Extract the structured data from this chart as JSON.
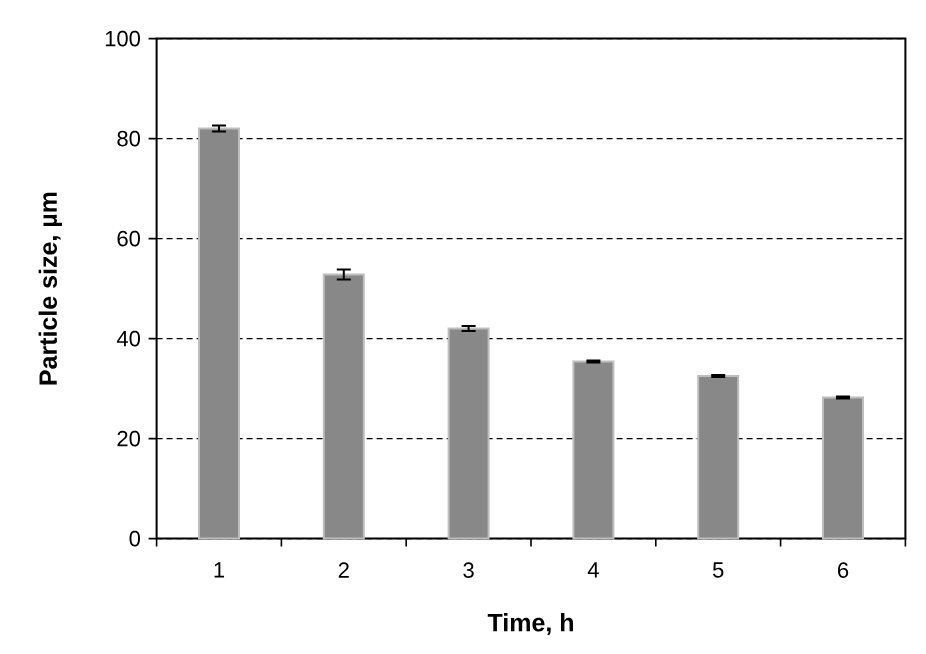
{
  "chart_data": {
    "type": "bar",
    "xlabel": "Time, h",
    "ylabel": "Particle size, µm",
    "categories": [
      "1",
      "2",
      "3",
      "4",
      "5",
      "6"
    ],
    "values": [
      82,
      52.8,
      42,
      35.4,
      32.5,
      28.2
    ],
    "errors": [
      0.6,
      1,
      0.5,
      0.2,
      0.2,
      0.2
    ],
    "color": "#888888",
    "ylim": [
      0,
      100
    ],
    "yticks": [
      0,
      20,
      40,
      60,
      80,
      100
    ],
    "grid": "y"
  }
}
